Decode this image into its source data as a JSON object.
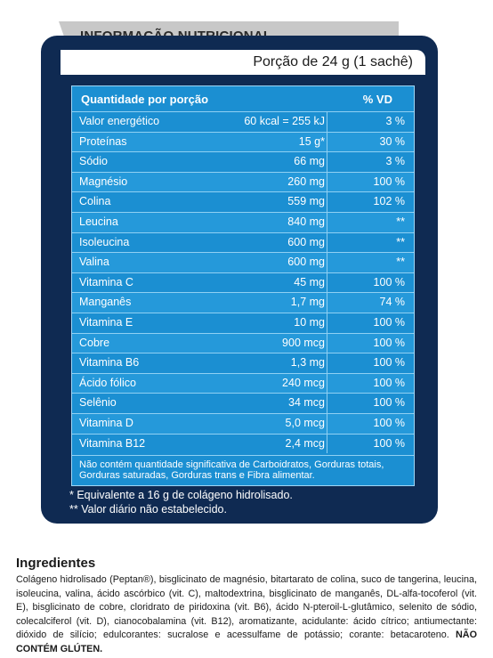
{
  "header": {
    "title": "INFORMAÇÃO NUTRICIONAL",
    "serving": "Porção de 24 g (1 sachê)"
  },
  "table": {
    "col_qty": "Quantidade por porção",
    "col_vd": "% VD",
    "rows": [
      {
        "name": "Valor energético",
        "amount": "60 kcal = 255 kJ",
        "vd": "3 %"
      },
      {
        "name": "Proteínas",
        "amount": "15 g*",
        "vd": "30 %"
      },
      {
        "name": "Sódio",
        "amount": "66 mg",
        "vd": "3 %"
      },
      {
        "name": "Magnésio",
        "amount": "260 mg",
        "vd": "100 %"
      },
      {
        "name": "Colina",
        "amount": "559 mg",
        "vd": "102 %"
      },
      {
        "name": "Leucina",
        "amount": "840 mg",
        "vd": "**"
      },
      {
        "name": "Isoleucina",
        "amount": "600 mg",
        "vd": "**"
      },
      {
        "name": "Valina",
        "amount": "600 mg",
        "vd": "**"
      },
      {
        "name": "Vitamina C",
        "amount": "45 mg",
        "vd": "100 %"
      },
      {
        "name": "Manganês",
        "amount": "1,7 mg",
        "vd": "74 %"
      },
      {
        "name": "Vitamina E",
        "amount": "10 mg",
        "vd": "100 %"
      },
      {
        "name": "Cobre",
        "amount": "900 mcg",
        "vd": "100 %"
      },
      {
        "name": "Vitamina B6",
        "amount": "1,3 mg",
        "vd": "100 %"
      },
      {
        "name": "Ácido fólico",
        "amount": "240 mcg",
        "vd": "100 %"
      },
      {
        "name": "Selênio",
        "amount": "34 mcg",
        "vd": "100 %"
      },
      {
        "name": "Vitamina D",
        "amount": "5,0 mcg",
        "vd": "100 %"
      },
      {
        "name": "Vitamina B12",
        "amount": "2,4 mcg",
        "vd": "100 %"
      }
    ],
    "footnote": "Não contém quantidade significativa de Carboidratos, Gorduras totais, Gorduras saturadas, Gorduras trans e Fibra alimentar."
  },
  "notes": {
    "line1": "* Equivalente a 16 g de colágeno hidrolisado.",
    "line2": "** Valor diário não estabelecido."
  },
  "ingredients": {
    "title": "Ingredientes",
    "text": "Colágeno hidrolisado (Peptan®), bisglicinato de magnésio, bitartarato de colina, suco de tangerina, leucina, isoleucina, valina, ácido ascórbico (vit. C), maltodextrina, bisglicinato de manganês, DL-alfa-tocoferol (vit. E), bisglicinato de cobre, cloridrato de piridoxina (vit. B6), ácido N-pteroil-L-glutâmico, selenito de sódio, colecalciferol (vit. D), cianocobalamina (vit. B12), aromatizante, acidulante: ácido cítrico; antiumectante: dióxido de silício; edulcorantes: sucralose e acessulfame de potássio; corante: betacaroteno.",
    "gluten": "NÃO CONTÉM GLÚTEN."
  }
}
